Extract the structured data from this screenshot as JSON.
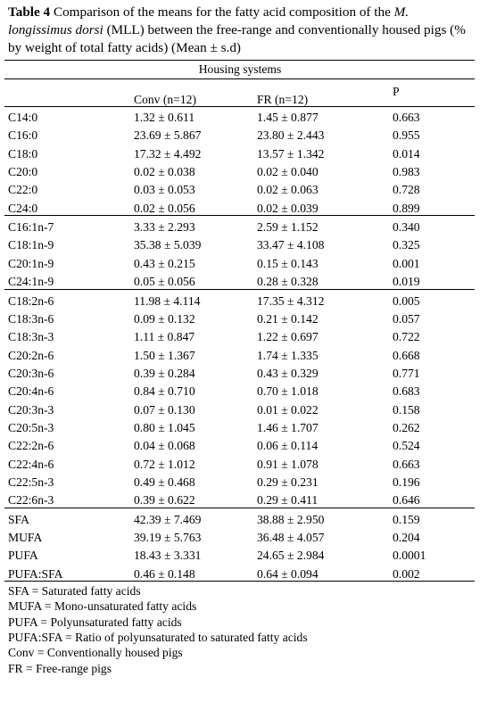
{
  "caption": {
    "label": "Table 4",
    "text_a": " Comparison of the means for the fatty acid composition of the ",
    "species_italic_1": "M.",
    "species_italic_2": "longissimus dorsi",
    "text_b": " (MLL) between the free-range and conventionally housed pigs (% by weight of total fatty acids) (Mean ± s.d)"
  },
  "table": {
    "group_header": "Housing systems",
    "col_conv": "Conv (n=12)",
    "col_fr": "FR (n=12)",
    "col_p": "P",
    "groups": [
      {
        "rows": [
          {
            "name": "C14:0",
            "conv": "1.32 ± 0.611",
            "fr": "1.45 ± 0.877",
            "p": "0.663"
          },
          {
            "name": "C16:0",
            "conv": "23.69 ± 5.867",
            "fr": "23.80 ± 2.443",
            "p": "0.955"
          },
          {
            "name": "C18:0",
            "conv": "17.32 ± 4.492",
            "fr": "13.57 ± 1.342",
            "p": "0.014"
          },
          {
            "name": "C20:0",
            "conv": "0.02 ± 0.038",
            "fr": "0.02 ± 0.040",
            "p": "0.983"
          },
          {
            "name": "C22:0",
            "conv": "0.03 ± 0.053",
            "fr": "0.02 ± 0.063",
            "p": "0.728"
          },
          {
            "name": "C24:0",
            "conv": "0.02 ± 0.056",
            "fr": "0.02 ± 0.039",
            "p": "0.899"
          }
        ]
      },
      {
        "rows": [
          {
            "name": "C16:1n-7",
            "conv": "3.33 ± 2.293",
            "fr": "2.59 ± 1.152",
            "p": "0.340"
          },
          {
            "name": "C18:1n-9",
            "conv": "35.38 ± 5.039",
            "fr": "33.47 ± 4.108",
            "p": "0.325"
          },
          {
            "name": "C20:1n-9",
            "conv": "0.43 ± 0.215",
            "fr": "0.15 ± 0.143",
            "p": "0.001"
          },
          {
            "name": "C24:1n-9",
            "conv": "0.05 ± 0.056",
            "fr": "0.28 ± 0.328",
            "p": "0.019"
          }
        ]
      },
      {
        "rows": [
          {
            "name": "C18:2n-6",
            "conv": "11.98 ± 4.114",
            "fr": "17.35 ± 4.312",
            "p": "0.005"
          },
          {
            "name": "C18:3n-6",
            "conv": "0.09 ± 0.132",
            "fr": "0.21 ± 0.142",
            "p": "0.057"
          },
          {
            "name": "C18:3n-3",
            "conv": "1.11 ± 0.847",
            "fr": "1.22 ± 0.697",
            "p": "0.722"
          },
          {
            "name": "C20:2n-6",
            "conv": "1.50 ± 1.367",
            "fr": "1.74 ± 1.335",
            "p": "0.668"
          },
          {
            "name": "C20:3n-6",
            "conv": "0.39 ± 0.284",
            "fr": "0.43 ± 0.329",
            "p": "0.771"
          },
          {
            "name": "C20:4n-6",
            "conv": "0.84 ± 0.710",
            "fr": "0.70 ± 1.018",
            "p": "0.683"
          },
          {
            "name": "C20:3n-3",
            "conv": "0.07 ± 0.130",
            "fr": "0.01 ± 0.022",
            "p": "0.158"
          },
          {
            "name": "C20:5n-3",
            "conv": "0.80 ± 1.045",
            "fr": "1.46 ± 1.707",
            "p": "0.262"
          },
          {
            "name": "C22:2n-6",
            "conv": "0.04 ± 0.068",
            "fr": "0.06 ± 0.114",
            "p": "0.524"
          },
          {
            "name": "C22:4n-6",
            "conv": "0.72 ± 1.012",
            "fr": "0.91 ± 1.078",
            "p": "0.663"
          },
          {
            "name": "C22:5n-3",
            "conv": "0.49 ± 0.468",
            "fr": "0.29 ± 0.231",
            "p": "0.196"
          },
          {
            "name": "C22:6n-3",
            "conv": "0.39 ± 0.622",
            "fr": "0.29 ± 0.411",
            "p": "0.646"
          }
        ]
      },
      {
        "rows": [
          {
            "name": "SFA",
            "conv": "42.39 ± 7.469",
            "fr": "38.88 ± 2.950",
            "p": "0.159"
          },
          {
            "name": "MUFA",
            "conv": "39.19 ± 5.763",
            "fr": "36.48 ± 4.057",
            "p": "0.204"
          },
          {
            "name": "PUFA",
            "conv": "18.43 ± 3.331",
            "fr": "24.65 ± 2.984",
            "p": "0.0001"
          },
          {
            "name": "PUFA:SFA",
            "conv": "0.46 ± 0.148",
            "fr": "0.64 ± 0.094",
            "p": "0.002"
          }
        ]
      }
    ]
  },
  "footnotes": [
    "SFA = Saturated fatty acids",
    "MUFA = Mono-unsaturated fatty acids",
    "PUFA = Polyunsaturated fatty acids",
    "PUFA:SFA = Ratio of polyunsaturated to saturated fatty acids",
    "Conv = Conventionally housed pigs",
    "FR = Free-range pigs"
  ]
}
